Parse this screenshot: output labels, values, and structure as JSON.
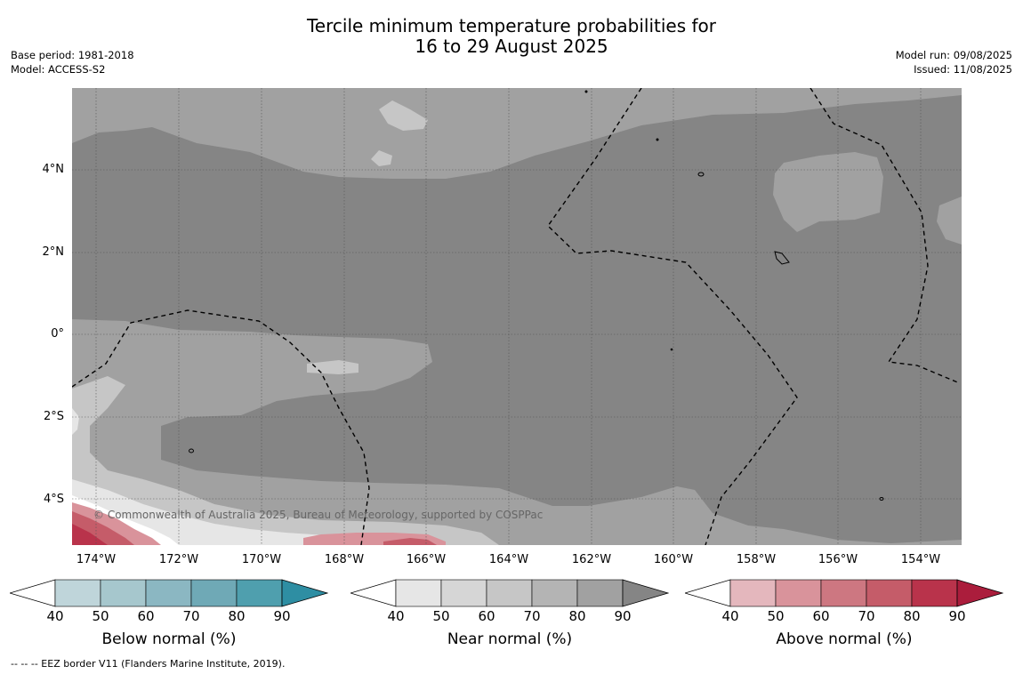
{
  "title": {
    "line1": "Tercile minimum temperature probabilities for",
    "line2": "16 to 29 August 2025"
  },
  "meta": {
    "base_period": "Base period: 1981-2018",
    "model": "Model: ACCESS-S2",
    "model_run": "Model run: 09/08/2025",
    "issued": "Issued: 11/08/2025"
  },
  "map": {
    "lat_labels": [
      "4°N",
      "2°N",
      "0°",
      "2°S",
      "4°S"
    ],
    "lon_labels": [
      "174°W",
      "172°W",
      "170°W",
      "168°W",
      "166°W",
      "164°W",
      "162°W",
      "160°W",
      "158°W",
      "156°W",
      "154°W"
    ],
    "copyright": "© Commonwealth of Australia 2025, Bureau of Meteorology, supported by COSPPac"
  },
  "colorbars": [
    {
      "title": "Below normal (%)",
      "ticks": [
        "40",
        "50",
        "60",
        "70",
        "80",
        "90"
      ],
      "colors": [
        "#bfd5da",
        "#a6c7cd",
        "#8bb7c2",
        "#6fa9b6",
        "#4f9fae",
        "#2e8ea3"
      ]
    },
    {
      "title": "Near normal (%)",
      "ticks": [
        "40",
        "50",
        "60",
        "70",
        "80",
        "90"
      ],
      "colors": [
        "#e6e6e6",
        "#d6d6d6",
        "#c6c6c6",
        "#b4b4b4",
        "#a1a1a1",
        "#858585"
      ]
    },
    {
      "title": "Above normal (%)",
      "ticks": [
        "40",
        "50",
        "60",
        "70",
        "80",
        "90"
      ],
      "colors": [
        "#e4b7bd",
        "#d9939b",
        "#cd7781",
        "#c55c69",
        "#b9334b",
        "#ab1d3c"
      ]
    }
  ],
  "footer": "-- -- -- EEZ border V11 (Flanders Marine Institute, 2019)."
}
